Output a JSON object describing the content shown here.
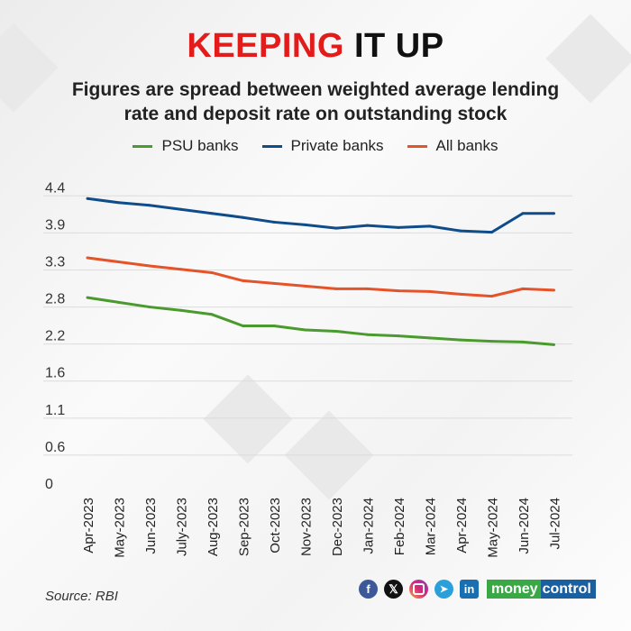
{
  "header": {
    "title_highlight": "KEEPING",
    "title_rest": " IT UP",
    "subtitle": "Figures are spread between weighted average lending rate and deposit rate on outstanding stock"
  },
  "footer": {
    "source": "Source: RBI",
    "brand_left": "money",
    "brand_right": "control",
    "social_icons": [
      "facebook-icon",
      "x-icon",
      "instagram-icon",
      "telegram-icon",
      "linkedin-icon"
    ]
  },
  "chart_data": {
    "type": "line",
    "title": "KEEPING IT UP",
    "subtitle": "Figures are spread between weighted average lending rate and deposit rate on outstanding stock",
    "xlabel": "",
    "ylabel": "",
    "categories": [
      "Apr-2023",
      "May-2023",
      "Jun-2023",
      "July-2023",
      "Aug-2023",
      "Sep-2023",
      "Oct-2023",
      "Nov-2023",
      "Dec-2023",
      "Jan-2024",
      "Feb-2024",
      "Mar-2024",
      "Apr-2024",
      "May-2024",
      "Jun-2024",
      "Jul-2024"
    ],
    "ylim": [
      0,
      4.4
    ],
    "yticks": [
      0,
      0.55,
      1.1,
      1.65,
      2.2,
      2.75,
      3.3,
      3.85,
      4.4
    ],
    "ytick_labels": [
      "0",
      "0.6",
      "1.1",
      "1.6",
      "2.2",
      "2.8",
      "3.3",
      "3.9",
      "4.4"
    ],
    "grid": true,
    "legend_position": "top",
    "series": [
      {
        "name": "PSU banks",
        "color": "#4a9a2e",
        "values": [
          2.89,
          2.82,
          2.75,
          2.7,
          2.64,
          2.47,
          2.47,
          2.41,
          2.39,
          2.34,
          2.32,
          2.29,
          2.26,
          2.24,
          2.23,
          2.19
        ]
      },
      {
        "name": "Private banks",
        "color": "#0f4c8a",
        "values": [
          4.36,
          4.3,
          4.26,
          4.2,
          4.14,
          4.08,
          4.01,
          3.97,
          3.92,
          3.96,
          3.93,
          3.95,
          3.88,
          3.86,
          4.14,
          4.14
        ]
      },
      {
        "name": "All banks",
        "color": "#e5532a",
        "values": [
          3.48,
          3.42,
          3.36,
          3.31,
          3.26,
          3.14,
          3.1,
          3.06,
          3.02,
          3.02,
          2.99,
          2.98,
          2.94,
          2.91,
          3.02,
          3.0
        ]
      }
    ]
  }
}
